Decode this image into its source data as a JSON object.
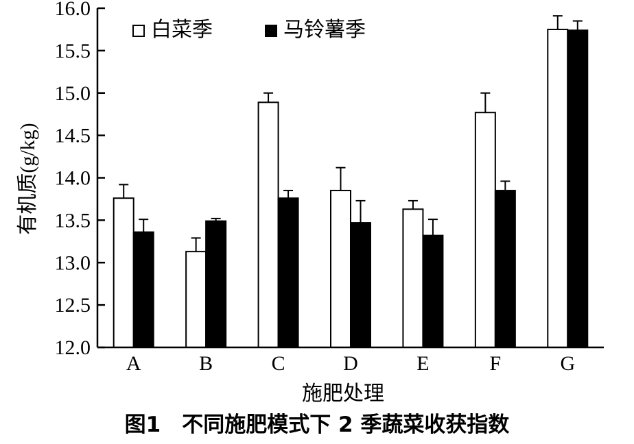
{
  "caption": "图1　不同施肥模式下 2 季蔬菜收获指数",
  "chart_data": {
    "type": "bar",
    "categories": [
      "A",
      "B",
      "C",
      "D",
      "E",
      "F",
      "G"
    ],
    "series": [
      {
        "name": "白菜季",
        "values": [
          13.76,
          13.13,
          14.89,
          13.85,
          13.63,
          14.77,
          15.75
        ],
        "errors": [
          0.16,
          0.16,
          0.11,
          0.27,
          0.1,
          0.23,
          0.16
        ],
        "color": "#ffffff"
      },
      {
        "name": "马铃薯季",
        "values": [
          13.36,
          13.49,
          13.76,
          13.47,
          13.32,
          13.85,
          15.74
        ],
        "errors": [
          0.15,
          0.03,
          0.09,
          0.26,
          0.19,
          0.11,
          0.11
        ],
        "color": "#000000"
      }
    ],
    "xlabel": "施肥处理",
    "ylabel": "有机质(g/kg)",
    "ylim": [
      12.0,
      16.0
    ],
    "yticks": [
      "12.0",
      "12.5",
      "13.0",
      "13.5",
      "14.0",
      "14.5",
      "15.0",
      "15.5",
      "16.0"
    ],
    "legend_position": "top-left",
    "grid": false
  }
}
